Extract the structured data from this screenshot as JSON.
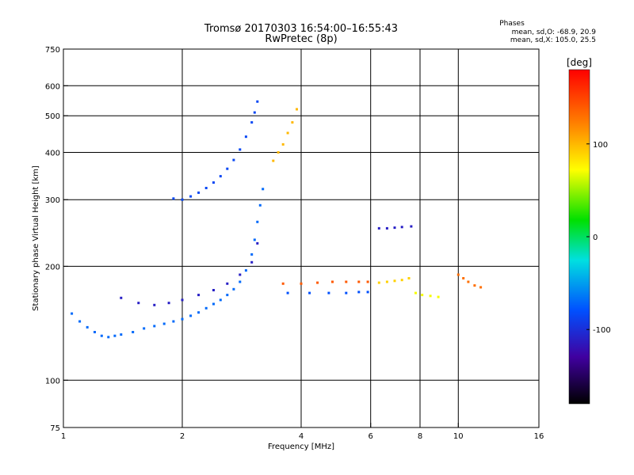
{
  "chart_data": {
    "type": "scatter",
    "title": "Tromsø 20170303 16:54:00–16:55:43",
    "subtitle": "RwPretec (8p)",
    "xlabel": "Frequency [MHz]",
    "ylabel": "Stationary phase Virtual Height [km]",
    "xscale": "log",
    "yscale": "log",
    "xlim": [
      1,
      16
    ],
    "ylim": [
      75,
      750
    ],
    "xticks": [
      1,
      2,
      4,
      6,
      8,
      10,
      16
    ],
    "yticks": [
      75,
      100,
      200,
      300,
      400,
      500,
      600,
      750
    ],
    "grid_x": [
      2,
      4,
      6,
      8,
      10
    ],
    "grid_y": [
      100,
      200,
      300,
      400,
      500,
      600
    ],
    "colorbar": {
      "label": "[deg]",
      "range": [
        -180,
        180
      ],
      "ticks": [
        100,
        0,
        -100
      ],
      "colormap": "rainbow"
    },
    "stats": {
      "heading": "Phases",
      "line_O": "mean, sd,O: -68.9, 20.9",
      "line_X": "mean, sd,X: 105.0, 25.5"
    },
    "series": [
      {
        "x": [
          1.05,
          1.1,
          1.15,
          1.2,
          1.25,
          1.3,
          1.35,
          1.4,
          1.5,
          1.6,
          1.7,
          1.8,
          1.9,
          2.0,
          2.1,
          2.2,
          2.3,
          2.4,
          2.5,
          2.6,
          2.7,
          2.8,
          2.9,
          3.0,
          3.05,
          3.1,
          3.15,
          3.2
        ],
        "y": [
          150,
          143,
          138,
          134,
          131,
          130,
          131,
          132,
          134,
          137,
          139,
          141,
          143,
          145,
          148,
          151,
          155,
          159,
          163,
          168,
          174,
          182,
          195,
          215,
          235,
          262,
          290,
          320
        ],
        "phase": -70
      },
      {
        "x": [
          1.9,
          2.0,
          2.1,
          2.2,
          2.3,
          2.4,
          2.5,
          2.6,
          2.7,
          2.8,
          2.9,
          3.0,
          3.05,
          3.1
        ],
        "y": [
          302,
          300,
          306,
          313,
          322,
          333,
          346,
          362,
          382,
          407,
          440,
          480,
          510,
          545
        ],
        "phase": -85
      },
      {
        "x": [
          1.4,
          1.55,
          1.7,
          1.85,
          2.0,
          2.2,
          2.4,
          2.6,
          2.8,
          3.0,
          3.1
        ],
        "y": [
          165,
          160,
          158,
          160,
          163,
          168,
          173,
          180,
          190,
          205,
          230
        ],
        "phase": -110
      },
      {
        "x": [
          3.4,
          3.5,
          3.6,
          3.7,
          3.8,
          3.9
        ],
        "y": [
          380,
          400,
          420,
          450,
          480,
          520
        ],
        "phase": 100
      },
      {
        "x": [
          3.6,
          4.0,
          4.4,
          4.8,
          5.2,
          5.6,
          5.9
        ],
        "y": [
          180,
          180,
          181,
          182,
          182,
          182,
          182
        ],
        "phase": 140
      },
      {
        "x": [
          3.7,
          4.2,
          4.7,
          5.2,
          5.6,
          5.9
        ],
        "y": [
          170,
          170,
          170,
          170,
          171,
          171
        ],
        "phase": -80
      },
      {
        "x": [
          6.3,
          6.6,
          6.9,
          7.2,
          7.5
        ],
        "y": [
          181,
          182,
          183,
          184,
          186
        ],
        "phase": 90
      },
      {
        "x": [
          6.3,
          6.6,
          6.9,
          7.2,
          7.6
        ],
        "y": [
          252,
          252,
          253,
          254,
          255
        ],
        "phase": -110
      },
      {
        "x": [
          7.8,
          8.1,
          8.5,
          8.9
        ],
        "y": [
          170,
          168,
          167,
          166
        ],
        "phase": 70
      },
      {
        "x": [
          10.0,
          10.3,
          10.6,
          11.0,
          11.4
        ],
        "y": [
          190,
          186,
          182,
          178,
          176
        ],
        "phase": 130
      }
    ]
  }
}
